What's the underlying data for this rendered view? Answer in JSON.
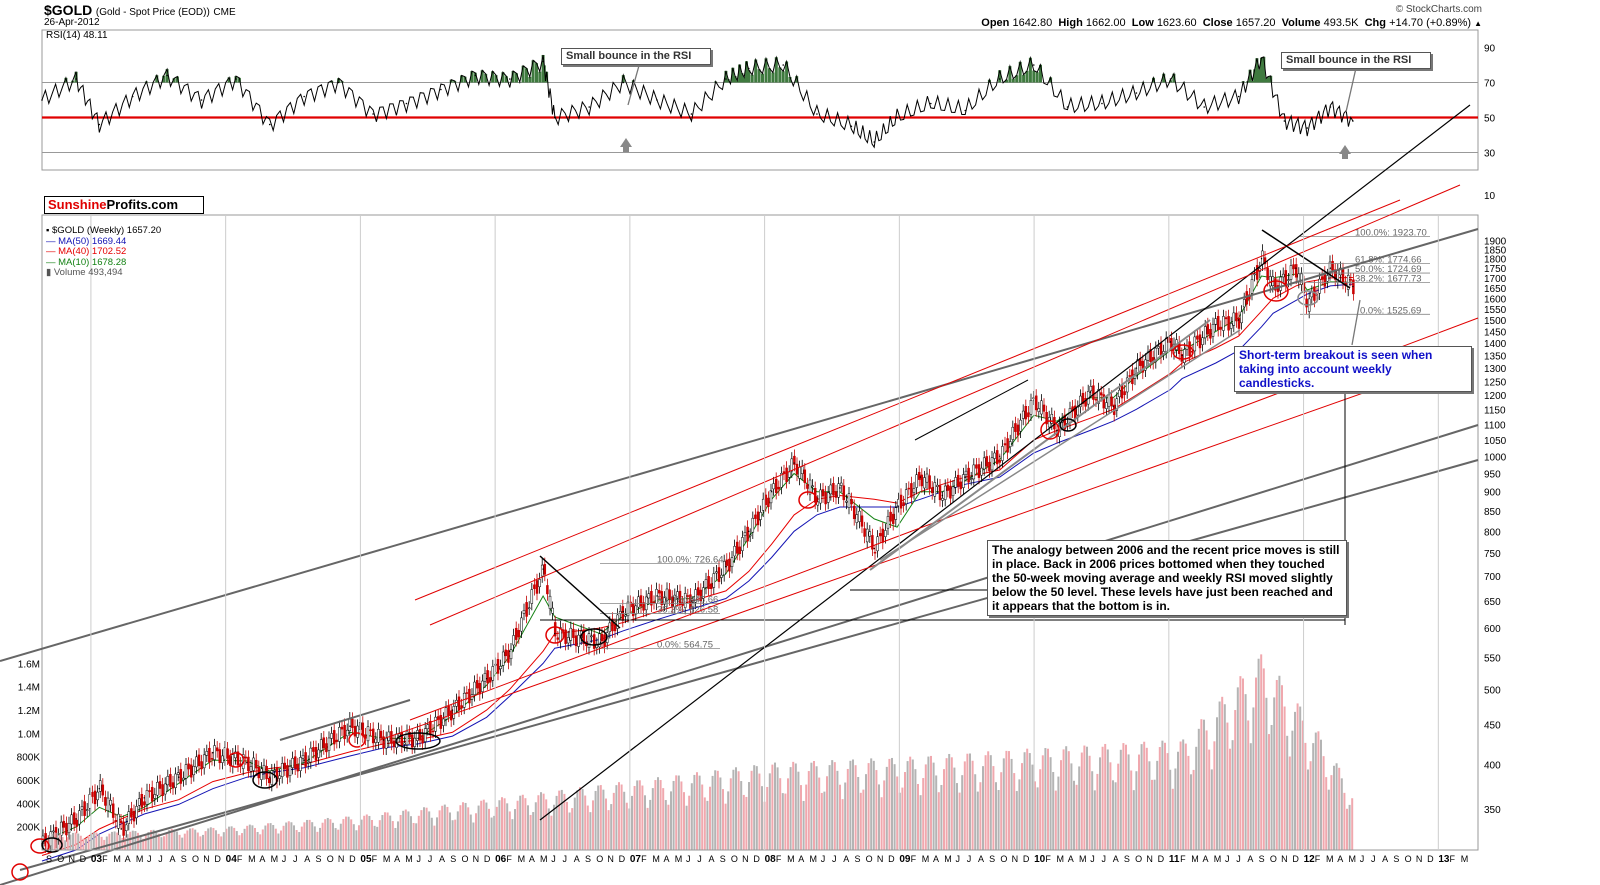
{
  "header": {
    "symbol": "$GOLD",
    "description": "(Gold - Spot Price (EOD))",
    "exchange": "CME",
    "date": "26-Apr-2012",
    "source": "© StockCharts.com",
    "ohlc": {
      "open_label": "Open",
      "open": "1642.80",
      "high_label": "High",
      "high": "1662.00",
      "low_label": "Low",
      "low": "1623.60",
      "close_label": "Close",
      "close": "1657.20",
      "volume_label": "Volume",
      "volume": "493.5K",
      "chg_label": "Chg",
      "chg": "+14.70 (+0.89%)",
      "arrow": "▲"
    }
  },
  "brand": {
    "part1": "Sunshine",
    "part2": "Profits.com"
  },
  "legend": {
    "main": "$GOLD (Weekly) 1657.20",
    "ma50": "MA(50) 1669.44",
    "ma40": "MA(40) 1702.52",
    "ma10": "MA(10) 1678.28",
    "volume": "Volume 493,494",
    "colors": {
      "ma50": "#1414b4",
      "ma40": "#e60000",
      "ma10": "#148214",
      "volume": "#666666"
    }
  },
  "annotations": {
    "rsi_bounce_1": "Small bounce in the RSI",
    "rsi_bounce_2": "Small bounce in the RSI",
    "breakout": "Short-term breakout is seen when taking into account weekly candlesticks.",
    "analogy": "The analogy between 2006 and the recent price moves is still in place. Back in 2006 prices bottomed when they touched the 50-week moving average and weekly RSI moved slightly below the 50 level. These levels have just been reached and it appears that the bottom is in."
  },
  "chart_data": [
    {
      "type": "line",
      "name": "RSI panel",
      "label": "RSI(14) 48.11",
      "ylim": [
        20,
        100
      ],
      "yticks": [
        90,
        70,
        50,
        30
      ],
      "reference_lines": [
        70,
        50,
        30
      ],
      "x": [
        "2002-09",
        "2002-12",
        "2003-02",
        "2003-05",
        "2003-08",
        "2003-11",
        "2004-02",
        "2004-05",
        "2004-08",
        "2004-11",
        "2005-02",
        "2005-05",
        "2005-08",
        "2005-11",
        "2006-02",
        "2006-05",
        "2006-06",
        "2006-09",
        "2006-12",
        "2007-03",
        "2007-06",
        "2007-09",
        "2007-11",
        "2008-02",
        "2008-05",
        "2008-08",
        "2008-10",
        "2008-12",
        "2009-03",
        "2009-06",
        "2009-09",
        "2009-12",
        "2010-03",
        "2010-06",
        "2010-09",
        "2010-12",
        "2011-03",
        "2011-06",
        "2011-08",
        "2011-10",
        "2011-12",
        "2012-02",
        "2012-04"
      ],
      "values": [
        60,
        72,
        46,
        62,
        74,
        60,
        72,
        46,
        62,
        70,
        52,
        58,
        66,
        74,
        72,
        82,
        50,
        56,
        70,
        60,
        52,
        72,
        78,
        80,
        52,
        45,
        36,
        50,
        58,
        54,
        72,
        80,
        56,
        58,
        64,
        72,
        56,
        62,
        84,
        48,
        44,
        56,
        48
      ]
    },
    {
      "type": "candlestick",
      "name": "$GOLD (Weekly)",
      "scale": "log",
      "ylim": [
        310,
        2050
      ],
      "yticks": [
        1900,
        1850,
        1800,
        1750,
        1700,
        1650,
        1600,
        1550,
        1500,
        1450,
        1400,
        1350,
        1300,
        1250,
        1200,
        1150,
        1100,
        1050,
        1000,
        950,
        900,
        850,
        800,
        750,
        700,
        650,
        600,
        550,
        500,
        450,
        400,
        350
      ],
      "x": [
        "2002-09",
        "2002-12",
        "2003-02",
        "2003-04",
        "2003-06",
        "2003-09",
        "2003-12",
        "2004-03",
        "2004-05",
        "2004-08",
        "2004-12",
        "2005-03",
        "2005-06",
        "2005-09",
        "2005-12",
        "2006-02",
        "2006-05",
        "2006-06",
        "2006-10",
        "2006-12",
        "2007-03",
        "2007-06",
        "2007-09",
        "2007-11",
        "2008-01",
        "2008-03",
        "2008-05",
        "2008-07",
        "2008-10",
        "2008-12",
        "2009-02",
        "2009-04",
        "2009-06",
        "2009-09",
        "2009-12",
        "2010-02",
        "2010-05",
        "2010-07",
        "2010-09",
        "2010-12",
        "2011-01",
        "2011-04",
        "2011-06",
        "2011-08",
        "2011-09",
        "2011-11",
        "2011-12",
        "2012-02",
        "2012-04"
      ],
      "close": [
        316,
        340,
        372,
        330,
        362,
        385,
        414,
        402,
        385,
        405,
        448,
        430,
        432,
        470,
        516,
        560,
        715,
        590,
        575,
        630,
        660,
        650,
        720,
        800,
        900,
        980,
        880,
        910,
        760,
        860,
        940,
        890,
        940,
        1000,
        1180,
        1080,
        1210,
        1160,
        1300,
        1405,
        1350,
        1480,
        1500,
        1800,
        1650,
        1750,
        1570,
        1750,
        1657
      ],
      "ma10": [
        318,
        332,
        352,
        342,
        352,
        378,
        405,
        404,
        392,
        402,
        440,
        432,
        432,
        462,
        506,
        552,
        660,
        620,
        590,
        622,
        652,
        655,
        705,
        785,
        880,
        950,
        900,
        900,
        830,
        810,
        900,
        900,
        930,
        990,
        1130,
        1110,
        1190,
        1190,
        1270,
        1370,
        1370,
        1450,
        1510,
        1710,
        1700,
        1720,
        1640,
        1680,
        1678
      ],
      "ma40": [
        305,
        315,
        330,
        340,
        350,
        360,
        380,
        390,
        395,
        400,
        415,
        425,
        430,
        440,
        470,
        500,
        560,
        590,
        600,
        610,
        630,
        650,
        670,
        710,
        770,
        840,
        880,
        890,
        880,
        870,
        900,
        920,
        940,
        960,
        1050,
        1080,
        1120,
        1150,
        1200,
        1280,
        1320,
        1380,
        1430,
        1540,
        1600,
        1660,
        1680,
        1700,
        1702
      ],
      "ma50": [
        300,
        310,
        325,
        335,
        345,
        355,
        372,
        385,
        390,
        396,
        410,
        420,
        425,
        435,
        460,
        490,
        540,
        565,
        580,
        595,
        615,
        635,
        655,
        690,
        740,
        800,
        840,
        860,
        860,
        860,
        880,
        900,
        920,
        940,
        1010,
        1040,
        1080,
        1110,
        1150,
        1220,
        1260,
        1320,
        1370,
        1470,
        1530,
        1590,
        1620,
        1660,
        1669
      ],
      "fibonacci": [
        {
          "label": "100.0%: 726.64",
          "value": 726.64
        },
        {
          "label": "50.0%: 645.66",
          "value": 645.66
        },
        {
          "label": "38.2%: 626.58",
          "value": 626.58
        },
        {
          "label": "0.0%: 564.75",
          "value": 564.75
        },
        {
          "label": "100.0%: 1923.70",
          "value": 1923.7
        },
        {
          "label": "61.8%: 1774.66",
          "value": 1774.66
        },
        {
          "label": "50.0%: 1724.69",
          "value": 1724.69
        },
        {
          "label": "38.2%: 1677.73",
          "value": 1677.73
        },
        {
          "label": "0.0%: 1525.69",
          "value": 1525.69
        }
      ]
    },
    {
      "type": "bar",
      "name": "Volume",
      "ylim": [
        0,
        1800000
      ],
      "ytick_labels": [
        "1.6M",
        "1.4M",
        "1.2M",
        "1.0M",
        "800K",
        "600K",
        "400K",
        "200K"
      ],
      "ytick_values": [
        1600000,
        1400000,
        1200000,
        1000000,
        800000,
        600000,
        400000,
        200000
      ],
      "x": [
        "2003",
        "2004",
        "2005",
        "2006",
        "2007",
        "2008",
        "2009",
        "2010",
        "2011",
        "2011-08",
        "2012",
        "2012-04"
      ],
      "values": [
        150000,
        200000,
        300000,
        450000,
        600000,
        750000,
        800000,
        880000,
        950000,
        1700000,
        1000000,
        493494
      ]
    }
  ],
  "x_axis": {
    "labels": [
      "S",
      "O",
      "N",
      "D",
      "03",
      "F",
      "M",
      "A",
      "M",
      "J",
      "J",
      "A",
      "S",
      "O",
      "N",
      "D",
      "04",
      "F",
      "M",
      "A",
      "M",
      "J",
      "J",
      "A",
      "S",
      "O",
      "N",
      "D",
      "05",
      "F",
      "M",
      "A",
      "M",
      "J",
      "J",
      "A",
      "S",
      "O",
      "N",
      "D",
      "06",
      "F",
      "M",
      "A",
      "M",
      "J",
      "J",
      "A",
      "S",
      "O",
      "N",
      "D",
      "07",
      "F",
      "M",
      "A",
      "M",
      "J",
      "J",
      "A",
      "S",
      "O",
      "N",
      "D",
      "08",
      "F",
      "M",
      "A",
      "M",
      "J",
      "J",
      "A",
      "S",
      "O",
      "N",
      "D",
      "09",
      "F",
      "M",
      "A",
      "M",
      "J",
      "J",
      "A",
      "S",
      "O",
      "N",
      "D",
      "10",
      "F",
      "M",
      "A",
      "M",
      "J",
      "J",
      "A",
      "S",
      "O",
      "N",
      "D",
      "11",
      "F",
      "M",
      "A",
      "M",
      "J",
      "J",
      "A",
      "S",
      "O",
      "N",
      "D",
      "12",
      "F",
      "M",
      "A",
      "M",
      "J",
      "J",
      "A",
      "S",
      "O",
      "N",
      "D",
      "13",
      "F",
      "M"
    ]
  }
}
